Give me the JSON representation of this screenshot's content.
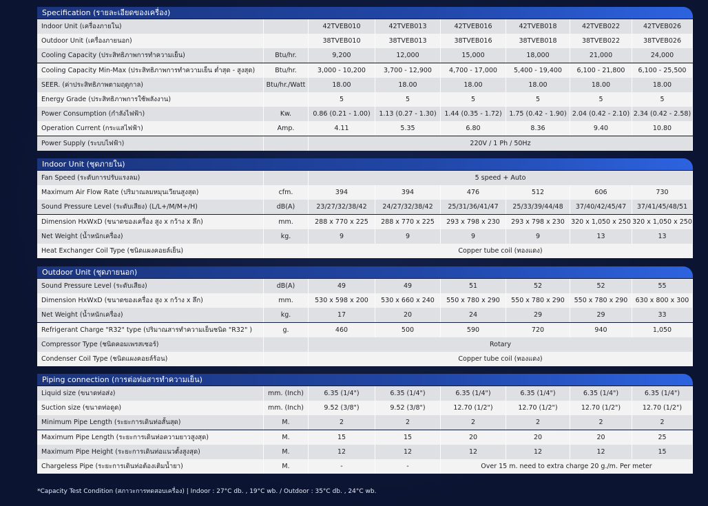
{
  "sections": [
    {
      "title": "Specification (รายละเอียดของเครื่อง)",
      "rows": [
        {
          "label": "Indoor Unit (เครื่องภายใน)",
          "values": [
            "42TVEB010",
            "42TVEB013",
            "42TVEB016",
            "42TVEB018",
            "42TVEB022",
            "42TVEB026"
          ]
        },
        {
          "label": "Outdoor Unit (เครื่องภายนอก)",
          "values": [
            "38TVEB010",
            "38TVEB013",
            "38TVEB016",
            "38TVEB018",
            "38TVEB022",
            "38TVEB026"
          ]
        },
        {
          "label": "Cooling Capacity (ประสิทธิภาพการทำความเย็น)",
          "unit": "Btu/hr.",
          "values": [
            "9,200",
            "12,000",
            "15,000",
            "18,000",
            "21,000",
            "24,000"
          ]
        },
        {
          "label": "Cooling Capacity Min-Max (ประสิทธิภาพการทำความเย็น ต่ำสุด - สูงสุด)",
          "unit": "Btu/hr.",
          "values": [
            "3,000 - 10,200",
            "3,700 - 12,900",
            "4,700 - 17,000",
            "5,400 - 19,400",
            "6,100 - 21,800",
            "6,100 - 25,500"
          ]
        },
        {
          "label": "SEER. (ค่าประสิทธิภาพตามฤดูกาล)",
          "unit": "Btu/hr./Watt",
          "values": [
            "18.00",
            "18.00",
            "18.00",
            "18.00",
            "18.00",
            "18.00"
          ]
        },
        {
          "label": "Energy Grade (ประสิทธิภาพการใช้พลังงาน)",
          "values": [
            "5",
            "5",
            "5",
            "5",
            "5",
            "5"
          ]
        },
        {
          "label": "Power Consumption (กำลังไฟฟ้า)",
          "unit": "Kw.",
          "values": [
            "0.86 (0.21 - 1.00)",
            "1.13 (0.27 - 1.30)",
            "1.44 (0.35 - 1.72)",
            "1.75 (0.42 - 1.90)",
            "2.04 (0.42 - 2.10)",
            "2.34 (0.42 - 2.58)"
          ]
        },
        {
          "label": "Operation Current (กระแสไฟฟ้า)",
          "unit": "Amp.",
          "values": [
            "4.11",
            "5.35",
            "6.80",
            "8.36",
            "9.40",
            "10.80"
          ]
        },
        {
          "label": "Power Supply (ระบบไฟฟ้า)",
          "values": [
            "220V / 1 Ph / 50Hz"
          ]
        }
      ]
    },
    {
      "title": "Indoor Unit (ชุดภายใน)",
      "rows": [
        {
          "label": "Fan Speed (ระดับการปรับแรงลม)",
          "values": [
            "5 speed + Auto"
          ]
        },
        {
          "label": "Maximum Air Flow Rate (ปริมาณลมหมุนเวียนสูงสุด)",
          "unit": "cfm.",
          "values": [
            "394",
            "394",
            "476",
            "512",
            "606",
            "730"
          ]
        },
        {
          "label": "Sound Pressure Level (ระดับเสียง) (L/L+/M/M+/H)",
          "unit": "dB(A)",
          "values": [
            "23/27/32/38/42",
            "24/27/32/38/42",
            "25/31/36/41/47",
            "25/33/39/44/48",
            "37/40/42/45/47",
            "37/41/45/48/51"
          ]
        },
        {
          "label": "Dimension HxWxD (ขนาดของเครื่อง สูง x กว้าง x ลึก)",
          "unit": "mm.",
          "values": [
            "288 x 770 x 225",
            "288 x 770 x 225",
            "293 x 798 x 230",
            "293 x 798 x 230",
            "320 x 1,050 x 250",
            "320 x 1,050 x 250"
          ]
        },
        {
          "label": "Net Weight (น้ำหนักเครื่อง)",
          "unit": "kg.",
          "values": [
            "9",
            "9",
            "9",
            "9",
            "13",
            "13"
          ]
        },
        {
          "label": "Heat Exchanger Coil Type (ชนิดแผงคอยล์เย็น)",
          "values": [
            "Copper tube coil (ทองแดง)"
          ]
        }
      ]
    },
    {
      "title": "Outdoor Unit (ชุดภายนอก)",
      "rows": [
        {
          "label": "Sound Pressure Level  (ระดับเสียง)",
          "unit": "dB(A)",
          "values": [
            "49",
            "49",
            "51",
            "52",
            "52",
            "55"
          ]
        },
        {
          "label": "Dimension HxWxD (ขนาดของเครื่อง สูง x กว้าง x ลึก)",
          "unit": "mm.",
          "values": [
            "530 x 598 x 200",
            "530 x 660 x 240",
            "550 x 780 x 290",
            "550 x 780 x 290",
            "550 x 780 x 290",
            "630 x 800 x 300"
          ]
        },
        {
          "label": "Net Weight (น้ำหนักเครื่อง)",
          "unit": "kg.",
          "values": [
            "17",
            "20",
            "24",
            "29",
            "29",
            "33"
          ]
        },
        {
          "label": "Refrigerant Charge \"R32\" type (ปริมาณสารทำความเย็นชนิด \"R32\" )",
          "unit": "g.",
          "values": [
            "460",
            "500",
            "590",
            "720",
            "940",
            "1,050"
          ]
        },
        {
          "label": "Compressor Type (ชนิดคอมเพรสเซอร์)",
          "values": [
            "Rotary"
          ]
        },
        {
          "label": "Condenser Coil Type (ชนิดแผงคอยล์ร้อน)",
          "values": [
            "Copper tube coil (ทองแดง)"
          ]
        }
      ]
    },
    {
      "title": "Piping connection (การต่อท่อสารทำความเย็น)",
      "rows": [
        {
          "label": "Liquid size (ขนาดท่อส่ง)",
          "unit": "mm. (Inch)",
          "values": [
            "6.35 (1/4\")",
            "6.35 (1/4\")",
            "6.35 (1/4\")",
            "6.35 (1/4\")",
            "6.35 (1/4\")",
            "6.35 (1/4\")"
          ]
        },
        {
          "label": "Suction size (ขนาดท่อดูด)",
          "unit": "mm. (Inch)",
          "values": [
            "9.52 (3/8\")",
            "9.52 (3/8\")",
            "12.70 (1/2\")",
            "12.70 (1/2\")",
            "12.70 (1/2\")",
            "12.70 (1/2\")"
          ]
        },
        {
          "label": "Minimum Pipe Length (ระยะการเดินท่อสั้นสุด)",
          "unit": "M.",
          "values": [
            "2",
            "2",
            "2",
            "2",
            "2",
            "2"
          ]
        },
        {
          "label": "Maximum Pipe Length (ระยะการเดินท่อความยาวสูงสุด)",
          "unit": "M.",
          "values": [
            "15",
            "15",
            "20",
            "20",
            "20",
            "25"
          ]
        },
        {
          "label": "Maximum Pipe Height (ระยะการเดินท่อแนวตั้งสูงสุด)",
          "unit": "M.",
          "values": [
            "12",
            "12",
            "12",
            "12",
            "12",
            "15"
          ]
        },
        {
          "label": "Chargeless Pipe (ระยะการเดินท่อต้องเติมน้ำยา)",
          "unit": "M.",
          "values": [
            "-",
            "-",
            "Over 15 m. need to extra charge 20 g./m. Per meter"
          ]
        }
      ]
    }
  ],
  "footnote": "*Capacity Test Condition (สภาวะการทดสอบเครื่อง) | Indoor : 27°C db. , 19°C wb. / Outdoor : 35°C db. , 24°C wb."
}
